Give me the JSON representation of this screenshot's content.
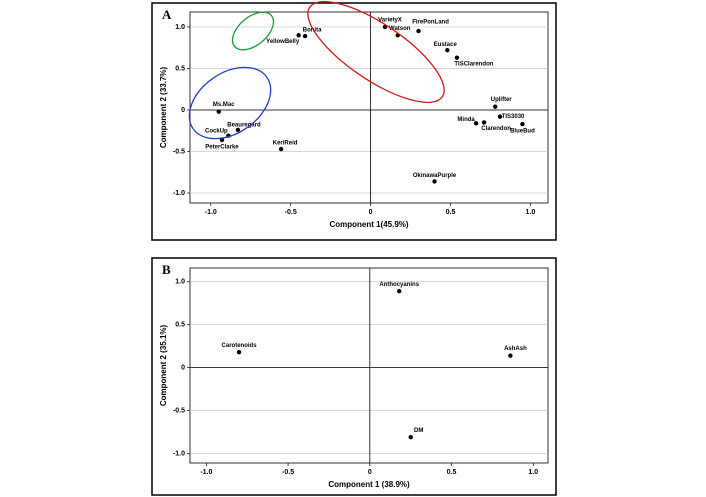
{
  "chart_data": [
    {
      "type": "scatter",
      "panel_label": "A",
      "x_label": "Component 1(45.9%)",
      "y_label": "Component 2 (33.7%)",
      "labels": [
        "Ms.Mac",
        "Beauregard",
        "CockUp",
        "PeterClarke",
        "KeriReid",
        "YellowBelly",
        "Bonita",
        "VarietyX",
        "Watson",
        "FirePonLand",
        "Eustace",
        "TISClarendon",
        "Uplifter",
        "TIS3030",
        "Minda",
        "Clarendon",
        "BlueBud",
        "OkinawaPurple"
      ],
      "x": [
        -0.95,
        -0.83,
        -0.89,
        -0.93,
        -0.56,
        -0.45,
        -0.41,
        0.09,
        0.17,
        0.3,
        0.48,
        0.54,
        0.78,
        0.81,
        0.66,
        0.71,
        0.95,
        0.4
      ],
      "y": [
        -0.02,
        -0.24,
        -0.31,
        -0.36,
        -0.47,
        0.9,
        0.89,
        1.0,
        0.9,
        0.95,
        0.72,
        0.63,
        0.04,
        -0.08,
        -0.16,
        -0.15,
        -0.17,
        -0.86
      ],
      "color": "#000000",
      "xlim": [
        -1.13,
        1.11
      ],
      "ylim": [
        -1.12,
        1.18
      ],
      "xticks": [
        {
          "value": -1,
          "label": "-1.0"
        },
        -0.5,
        0,
        0.5,
        {
          "value": 1,
          "label": "1.0"
        }
      ],
      "yticks": [
        {
          "value": -1,
          "label": "-1.0"
        },
        -0.5,
        0,
        0.5,
        {
          "value": 1,
          "label": "1.0"
        }
      ],
      "grid": true,
      "zero_lines": true
    },
    {
      "type": "scatter",
      "panel_label": "B",
      "x_label": "Component 1 (38.9%)",
      "y_label": "Component 2 (35.1%)",
      "labels": [
        "Anthocyanins",
        "Carotenoids",
        "AshAsh",
        "DM"
      ],
      "x": [
        0.18,
        -0.8,
        0.86,
        0.25
      ],
      "y": [
        0.89,
        0.18,
        0.14,
        -0.81
      ],
      "color": "#000000",
      "xlim": [
        -1.1,
        1.09
      ],
      "ylim": [
        -1.11,
        1.16
      ],
      "xticks": [
        {
          "value": -1,
          "label": "-1.0"
        },
        -0.5,
        0,
        0.5,
        {
          "value": 1,
          "label": "1.0"
        }
      ],
      "yticks": [
        {
          "value": -1,
          "label": "-1.0"
        },
        -0.5,
        0,
        0.5,
        {
          "value": 1,
          "label": "1.0"
        }
      ],
      "grid": true,
      "zero_lines": true
    }
  ]
}
